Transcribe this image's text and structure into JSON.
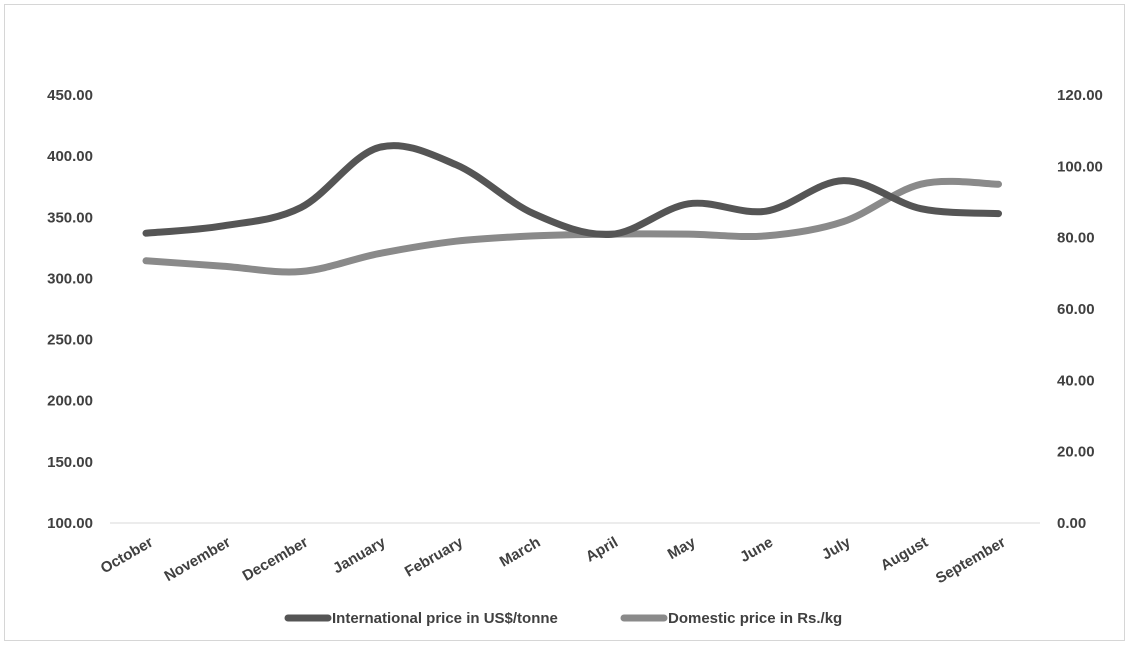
{
  "chart_data": {
    "type": "line",
    "categories": [
      "October",
      "November",
      "December",
      "January",
      "February",
      "March",
      "April",
      "May",
      "June",
      "July",
      "August",
      "September"
    ],
    "series": [
      {
        "name": "International price in US$/tonne",
        "axis": "left",
        "color": "#555555",
        "values": [
          337,
          343,
          358,
          407,
          393,
          353,
          336,
          361,
          355,
          380,
          357,
          353
        ]
      },
      {
        "name": "Domestic price in Rs./kg",
        "axis": "right",
        "color": "#8a8a8a",
        "values": [
          73.5,
          72.0,
          70.5,
          75.5,
          79.0,
          80.5,
          81.0,
          81.0,
          80.5,
          84.5,
          95.0,
          95.0
        ]
      }
    ],
    "y_left": {
      "ticks": [
        "100.00",
        "150.00",
        "200.00",
        "250.00",
        "300.00",
        "350.00",
        "400.00",
        "450.00"
      ],
      "range": [
        100,
        450
      ]
    },
    "y_right": {
      "ticks": [
        "0.00",
        "20.00",
        "40.00",
        "60.00",
        "80.00",
        "100.00",
        "120.00"
      ],
      "range": [
        0,
        120
      ]
    },
    "grid": false,
    "legend_position": "bottom"
  }
}
